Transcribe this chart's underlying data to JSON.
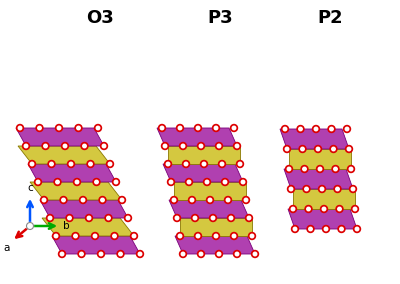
{
  "title_o3": "O3",
  "title_p3": "P3",
  "title_p2": "P2",
  "title_fontsize": 13,
  "title_fontweight": "bold",
  "bg_color": "#ffffff",
  "purple_color": "#b040b0",
  "yellow_color": "#d4c840",
  "red_color": "#dd0000",
  "white_color": "#ffffff",
  "axis_blue": "#0055ff",
  "axis_red": "#dd0000",
  "axis_green": "#00aa00",
  "fig_width": 4.0,
  "fig_height": 2.84,
  "dpi": 100
}
